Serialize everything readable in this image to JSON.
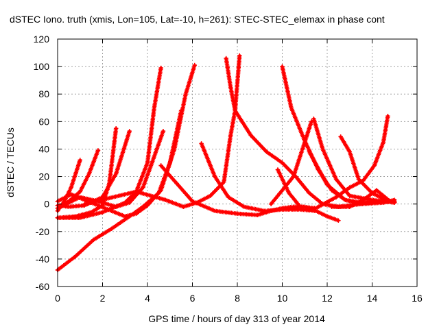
{
  "chart_data": {
    "type": "scatter",
    "title": "dSTEC Iono. truth (xmis, Lon=105, Lat=-10, h=261): STEC-STEC_elemax in phase cont",
    "xlabel": "GPS time / hours of day 313 of year 2014",
    "ylabel": "dSTEC  / TECUs",
    "xlim": [
      0,
      16
    ],
    "ylim": [
      -60,
      120
    ],
    "xticks": [
      "0",
      "2",
      "4",
      "6",
      "8",
      "10",
      "12",
      "14",
      "16"
    ],
    "yticks": [
      "-60",
      "-40",
      "-20",
      "0",
      "20",
      "40",
      "60",
      "80",
      "100",
      "120"
    ],
    "grid": true,
    "marker": "+",
    "color": "#ff0000",
    "series": [
      {
        "values": [
          [
            0.0,
            -5
          ],
          [
            0.3,
            2
          ],
          [
            0.6,
            12
          ],
          [
            0.8,
            22
          ],
          [
            1.0,
            32
          ]
        ]
      },
      {
        "values": [
          [
            0.0,
            -3
          ],
          [
            0.5,
            2
          ],
          [
            1.0,
            9
          ],
          [
            1.4,
            22
          ],
          [
            1.8,
            39
          ]
        ]
      },
      {
        "values": [
          [
            0.0,
            -10
          ],
          [
            0.8,
            -9
          ],
          [
            1.5,
            -6
          ],
          [
            2.0,
            -1
          ],
          [
            2.3,
            15
          ],
          [
            2.6,
            55
          ]
        ]
      },
      {
        "values": [
          [
            0.0,
            -1
          ],
          [
            0.5,
            -2
          ],
          [
            1.2,
            -1
          ],
          [
            2.0,
            5
          ],
          [
            2.6,
            22
          ],
          [
            3.2,
            53
          ]
        ]
      },
      {
        "values": [
          [
            0.0,
            -48
          ],
          [
            0.8,
            -38
          ],
          [
            1.6,
            -26
          ],
          [
            2.4,
            -18
          ],
          [
            3.2,
            -9
          ],
          [
            3.8,
            -2
          ],
          [
            4.5,
            8
          ],
          [
            5.0,
            30
          ],
          [
            5.5,
            68
          ]
        ]
      },
      {
        "values": [
          [
            0.0,
            -10
          ],
          [
            1.0,
            -10
          ],
          [
            2.0,
            -6
          ],
          [
            3.0,
            1
          ],
          [
            3.5,
            9
          ],
          [
            4.0,
            30
          ],
          [
            4.3,
            70
          ],
          [
            4.6,
            99
          ]
        ]
      },
      {
        "values": [
          [
            0.0,
            -3
          ],
          [
            1.0,
            5
          ],
          [
            1.8,
            2
          ],
          [
            2.6,
            -2
          ],
          [
            3.2,
            1
          ],
          [
            3.8,
            12
          ],
          [
            4.2,
            30
          ],
          [
            4.7,
            53
          ]
        ]
      },
      {
        "values": [
          [
            0.0,
            2
          ],
          [
            0.6,
            7
          ],
          [
            1.5,
            1
          ],
          [
            2.4,
            -5
          ],
          [
            3.0,
            -9
          ],
          [
            3.5,
            -7
          ],
          [
            4.0,
            -1
          ],
          [
            4.6,
            10
          ],
          [
            5.2,
            40
          ],
          [
            5.7,
            80
          ],
          [
            6.1,
            101
          ]
        ]
      },
      {
        "values": [
          [
            1.2,
            0
          ],
          [
            3.5,
            9
          ],
          [
            4.8,
            3
          ],
          [
            5.6,
            -2
          ],
          [
            6.2,
            1
          ],
          [
            6.8,
            6
          ],
          [
            7.4,
            16
          ],
          [
            7.7,
            50
          ],
          [
            7.9,
            68
          ],
          [
            8.1,
            108
          ]
        ]
      },
      {
        "values": [
          [
            4.6,
            28
          ],
          [
            5.3,
            15
          ],
          [
            6.0,
            2
          ],
          [
            7.0,
            -5
          ],
          [
            8.0,
            -7
          ],
          [
            8.9,
            -8
          ],
          [
            9.5,
            -5
          ],
          [
            10.0,
            -3
          ],
          [
            10.5,
            -2
          ],
          [
            11.0,
            -2
          ],
          [
            11.5,
            -5
          ],
          [
            12.0,
            -9
          ],
          [
            12.5,
            -12
          ]
        ]
      },
      {
        "values": [
          [
            6.4,
            44
          ],
          [
            7.0,
            20
          ],
          [
            7.6,
            5
          ],
          [
            8.3,
            -2
          ],
          [
            9.2,
            -5
          ],
          [
            10.0,
            -4
          ],
          [
            10.8,
            -4
          ],
          [
            11.5,
            -5
          ]
        ]
      },
      {
        "values": [
          [
            7.5,
            106
          ],
          [
            7.7,
            85
          ],
          [
            7.9,
            68
          ],
          [
            8.6,
            50
          ],
          [
            9.3,
            38
          ],
          [
            10.0,
            30
          ],
          [
            10.6,
            20
          ],
          [
            11.2,
            8
          ],
          [
            11.8,
            0
          ],
          [
            12.5,
            -2
          ],
          [
            13.5,
            0
          ],
          [
            14.5,
            2
          ],
          [
            15.0,
            2
          ]
        ]
      },
      {
        "values": [
          [
            9.8,
            25
          ],
          [
            10.3,
            8
          ],
          [
            10.8,
            -2
          ],
          [
            11.5,
            -3
          ],
          [
            12.4,
            5
          ],
          [
            13.0,
            12
          ],
          [
            13.6,
            17
          ],
          [
            14.1,
            28
          ],
          [
            14.5,
            45
          ],
          [
            14.7,
            64
          ]
        ]
      },
      {
        "values": [
          [
            10.0,
            100
          ],
          [
            10.4,
            70
          ],
          [
            11.0,
            46
          ],
          [
            11.6,
            25
          ],
          [
            12.2,
            10
          ],
          [
            12.8,
            3
          ],
          [
            13.5,
            1
          ],
          [
            14.2,
            2
          ],
          [
            15.0,
            2
          ]
        ]
      },
      {
        "values": [
          [
            9.5,
            0
          ],
          [
            10.5,
            20
          ],
          [
            11.2,
            55
          ],
          [
            11.3,
            60
          ]
        ]
      },
      {
        "values": [
          [
            11.4,
            62
          ],
          [
            11.8,
            40
          ],
          [
            12.4,
            18
          ],
          [
            13.0,
            6
          ],
          [
            14.0,
            3
          ],
          [
            15.0,
            1
          ]
        ]
      },
      {
        "values": [
          [
            11.2,
            38
          ],
          [
            12.0,
            14
          ],
          [
            12.8,
            3
          ],
          [
            13.5,
            0
          ],
          [
            14.5,
            1
          ],
          [
            15.0,
            3
          ]
        ]
      },
      {
        "values": [
          [
            12.6,
            49
          ],
          [
            13.0,
            38
          ],
          [
            13.4,
            18
          ],
          [
            14.0,
            8
          ],
          [
            14.6,
            3
          ],
          [
            15.0,
            1
          ]
        ]
      },
      {
        "values": [
          [
            12.2,
            -2
          ],
          [
            13.0,
            -2
          ],
          [
            13.6,
            3
          ],
          [
            14.2,
            10
          ],
          [
            14.8,
            2
          ]
        ]
      }
    ]
  }
}
